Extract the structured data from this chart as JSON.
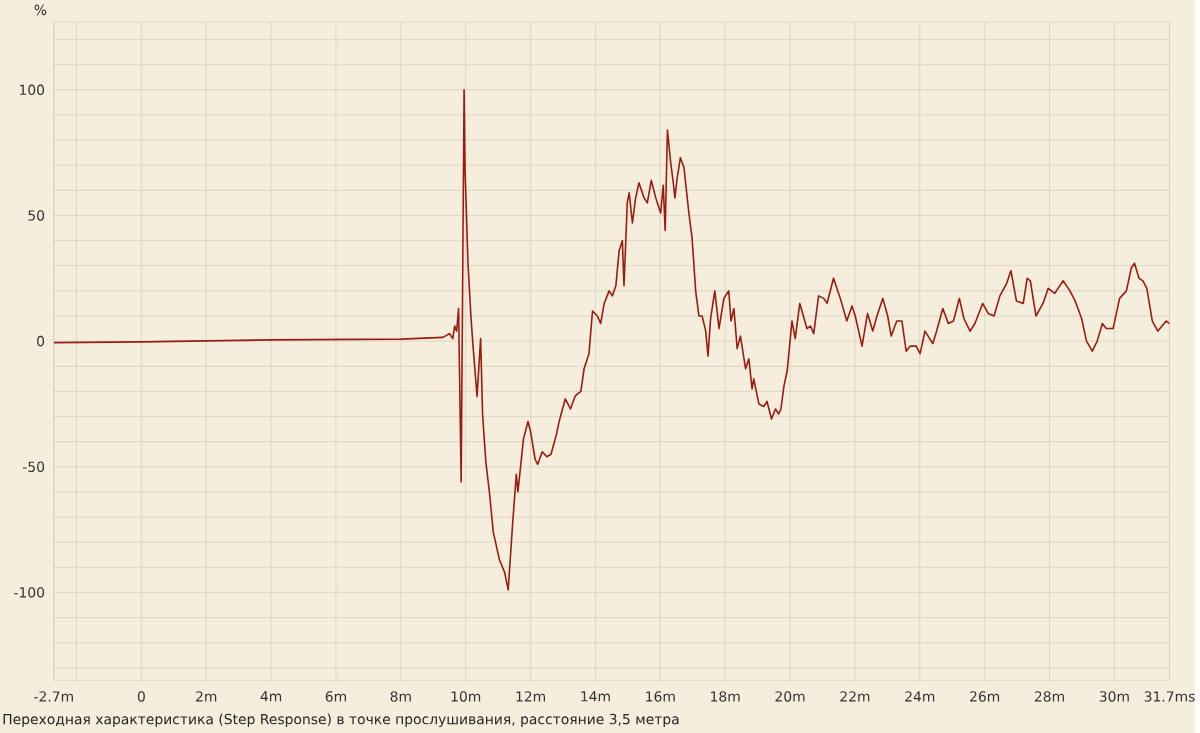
{
  "chart_data": {
    "type": "line",
    "ylabel": "%",
    "annotations": [
      "Переходная характеристика (Step Response) в точке прослушивания, расстояние 3,5 метра"
    ],
    "xlim": [
      -2.7,
      31.7
    ],
    "ylim": [
      -135,
      127
    ],
    "xticks": [
      {
        "value": -2.7,
        "label": "-2.7m"
      },
      {
        "value": -2,
        "label": null
      },
      0,
      {
        "value": 2,
        "label": "2m"
      },
      {
        "value": 4,
        "label": "4m"
      },
      {
        "value": 6,
        "label": "6m"
      },
      {
        "value": 8,
        "label": "8m"
      },
      {
        "value": 10,
        "label": "10m"
      },
      {
        "value": 12,
        "label": "12m"
      },
      {
        "value": 14,
        "label": "14m"
      },
      {
        "value": 16,
        "label": "16m"
      },
      {
        "value": 18,
        "label": "18m"
      },
      {
        "value": 20,
        "label": "20m"
      },
      {
        "value": 22,
        "label": "22m"
      },
      {
        "value": 24,
        "label": "24m"
      },
      {
        "value": 26,
        "label": "26m"
      },
      {
        "value": 28,
        "label": "28m"
      },
      {
        "value": 30,
        "label": "30m"
      },
      {
        "value": 31.7,
        "label": "31.7ms"
      }
    ],
    "yticks": [
      {
        "value": -130,
        "label": null
      },
      {
        "value": -120,
        "label": null
      },
      {
        "value": -110,
        "label": null
      },
      -100,
      {
        "value": -90,
        "label": null
      },
      {
        "value": -80,
        "label": null
      },
      {
        "value": -70,
        "label": null
      },
      {
        "value": -60,
        "label": null
      },
      -50,
      {
        "value": -40,
        "label": null
      },
      {
        "value": -30,
        "label": null
      },
      {
        "value": -20,
        "label": null
      },
      {
        "value": -10,
        "label": null
      },
      0,
      {
        "value": 10,
        "label": null
      },
      {
        "value": 20,
        "label": null
      },
      {
        "value": 30,
        "label": null
      },
      {
        "value": 40,
        "label": null
      },
      50,
      {
        "value": 60,
        "label": null
      },
      {
        "value": 70,
        "label": null
      },
      {
        "value": 80,
        "label": null
      },
      {
        "value": 90,
        "label": null
      },
      100,
      {
        "value": 110,
        "label": null
      },
      {
        "value": 120,
        "label": null
      }
    ],
    "grid": true,
    "marker": "none",
    "line_style": "solid",
    "series": [
      {
        "color": "#9b1b0f",
        "x": [
          -2.7,
          0,
          4,
          8,
          9.3,
          9.5,
          9.6,
          9.66,
          9.72,
          9.78,
          9.86,
          9.95,
          9.98,
          10.07,
          10.16,
          10.22,
          10.35,
          10.46,
          10.52,
          10.62,
          10.73,
          10.85,
          11.04,
          11.2,
          11.31,
          11.45,
          11.56,
          11.61,
          11.78,
          11.92,
          12.0,
          12.14,
          12.22,
          12.36,
          12.5,
          12.63,
          12.8,
          12.88,
          13.07,
          13.23,
          13.37,
          13.45,
          13.55,
          13.65,
          13.8,
          13.91,
          14.06,
          14.16,
          14.27,
          14.42,
          14.52,
          14.63,
          14.73,
          14.83,
          14.88,
          14.93,
          14.98,
          15.04,
          15.14,
          15.24,
          15.34,
          15.5,
          15.6,
          15.72,
          15.86,
          16.01,
          16.09,
          16.15,
          16.22,
          16.32,
          16.4,
          16.45,
          16.52,
          16.62,
          16.73,
          16.88,
          16.98,
          17.09,
          17.19,
          17.29,
          17.4,
          17.47,
          17.55,
          17.68,
          17.81,
          17.96,
          18.11,
          18.18,
          18.27,
          18.37,
          18.47,
          18.63,
          18.73,
          18.83,
          18.88,
          19.04,
          19.19,
          19.29,
          19.43,
          19.55,
          19.65,
          19.72,
          19.81,
          19.91,
          20.06,
          20.16,
          20.3,
          20.52,
          20.63,
          20.73,
          20.88,
          21.04,
          21.14,
          21.34,
          21.55,
          21.75,
          21.91,
          22.01,
          22.22,
          22.39,
          22.55,
          22.68,
          22.86,
          23.01,
          23.12,
          23.29,
          23.45,
          23.58,
          23.7,
          23.89,
          24.01,
          24.16,
          24.4,
          24.52,
          24.71,
          24.88,
          25.04,
          25.22,
          25.36,
          25.55,
          25.7,
          25.94,
          26.11,
          26.29,
          26.47,
          26.68,
          26.81,
          26.98,
          27.19,
          27.31,
          27.41,
          27.58,
          27.8,
          27.96,
          28.16,
          28.42,
          28.63,
          28.79,
          28.99,
          29.14,
          29.32,
          29.47,
          29.63,
          29.75,
          29.96,
          30.16,
          30.37,
          30.52,
          30.62,
          30.76,
          30.88,
          31.0,
          31.17,
          31.34,
          31.6,
          31.7
        ],
        "values": [
          -0.6,
          -0.3,
          0.5,
          0.8,
          1.5,
          3,
          1,
          6,
          4,
          13,
          -56,
          100,
          68,
          31,
          10,
          -1,
          -22,
          1,
          -29,
          -48,
          -60,
          -76,
          -87,
          -92,
          -99,
          -72,
          -53,
          -60,
          -39,
          -32,
          -36,
          -47,
          -49,
          -44,
          -46,
          -45,
          -37,
          -32,
          -23,
          -27,
          -22,
          -21,
          -20,
          -11,
          -5,
          12,
          10,
          7,
          15,
          20,
          18,
          22,
          36,
          40,
          22,
          38,
          55,
          59,
          47,
          57,
          63,
          57,
          55,
          64,
          57,
          51,
          62,
          44,
          84,
          71,
          63,
          57,
          65,
          73,
          69,
          51,
          41,
          20,
          10,
          10,
          4,
          -6,
          9,
          20,
          5,
          17,
          20,
          8,
          13,
          -3,
          2,
          -11,
          -7,
          -19,
          -15,
          -25,
          -26,
          -24,
          -31,
          -27,
          -29,
          -27,
          -18,
          -12,
          8,
          1,
          15,
          5,
          6,
          3,
          18,
          17,
          15,
          25,
          17,
          8,
          14,
          10,
          -2,
          11,
          4,
          10,
          17,
          10,
          2,
          8,
          8,
          -4,
          -2,
          -2,
          -5,
          4,
          -1,
          4,
          13,
          7,
          8,
          17,
          9,
          4,
          7,
          15,
          11,
          10,
          18,
          23,
          28,
          16,
          15,
          25,
          24,
          10,
          15,
          21,
          19,
          24,
          20,
          16,
          9,
          0,
          -4,
          0,
          7,
          5,
          5,
          17,
          20,
          29,
          31,
          25,
          24,
          21,
          8,
          4,
          8,
          7
        ]
      }
    ]
  }
}
